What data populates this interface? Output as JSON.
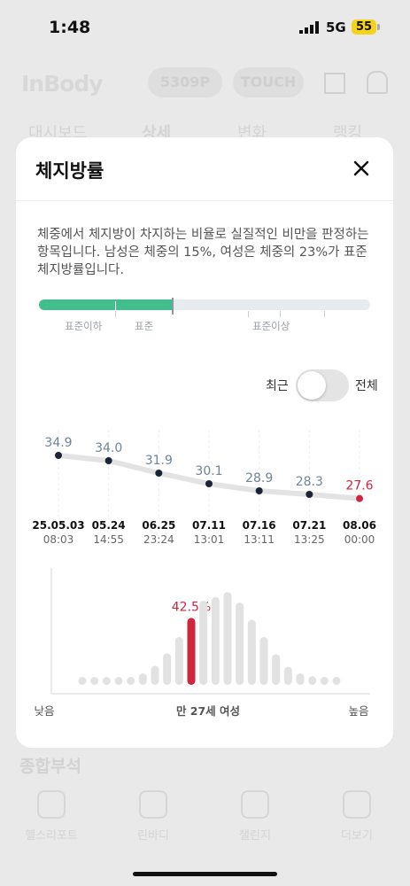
{
  "status_bar": {
    "time": "1:48",
    "network": "5G",
    "battery": "55"
  },
  "background_app": {
    "logo": "InBody",
    "pill_points": "5309P",
    "pill_touch": "TOUCH",
    "tabs": [
      "대시보드",
      "상세",
      "변화",
      "랭킹"
    ],
    "section_title": "종합부석",
    "nav": [
      "헬스리포트",
      "린바디",
      "챌린지",
      "더보기"
    ]
  },
  "modal": {
    "title": "체지방률",
    "description": "체중에서 체지방이 차지하는 비율로 실질적인 비만을 판정하는 항목입니다. 남성은 체중의 15%, 여성은 체중의 23%가 표준 체지방률입니다.",
    "range_labels": [
      "표준이하",
      "표준",
      "표준이상"
    ],
    "range_fill_fraction": 0.4,
    "toggle": {
      "left_label": "최근",
      "right_label": "전체",
      "state": "최근"
    }
  },
  "chart_data": [
    {
      "type": "line",
      "title": "",
      "dates": [
        "25.05.03",
        "05.24",
        "06.25",
        "07.11",
        "07.16",
        "07.21",
        "08.06"
      ],
      "times": [
        "08:03",
        "14:55",
        "23:24",
        "13:01",
        "13:11",
        "13:25",
        "00:00"
      ],
      "values": [
        34.9,
        34.0,
        31.9,
        30.1,
        28.9,
        28.3,
        27.6
      ],
      "highlight_index": 6,
      "colors": {
        "normal": "#6f8496",
        "highlight": "#d0253f",
        "line": "#e3e3e3",
        "dot": "#1c2536"
      }
    },
    {
      "type": "bar",
      "title": "",
      "values": [
        0.06,
        0.06,
        0.06,
        0.06,
        0.08,
        0.12,
        0.2,
        0.33,
        0.5,
        0.7,
        0.88,
        0.92,
        0.97,
        0.86,
        0.68,
        0.5,
        0.32,
        0.19,
        0.12,
        0.09,
        0.07,
        0.06
      ],
      "highlight_index": 9,
      "highlight_label": "42.5%",
      "xlabel_left": "낮음",
      "xlabel_center": "만 27세 여성",
      "xlabel_right": "높음",
      "colors": {
        "bar": "#e2e2e2",
        "highlight": "#d0253f"
      }
    }
  ]
}
